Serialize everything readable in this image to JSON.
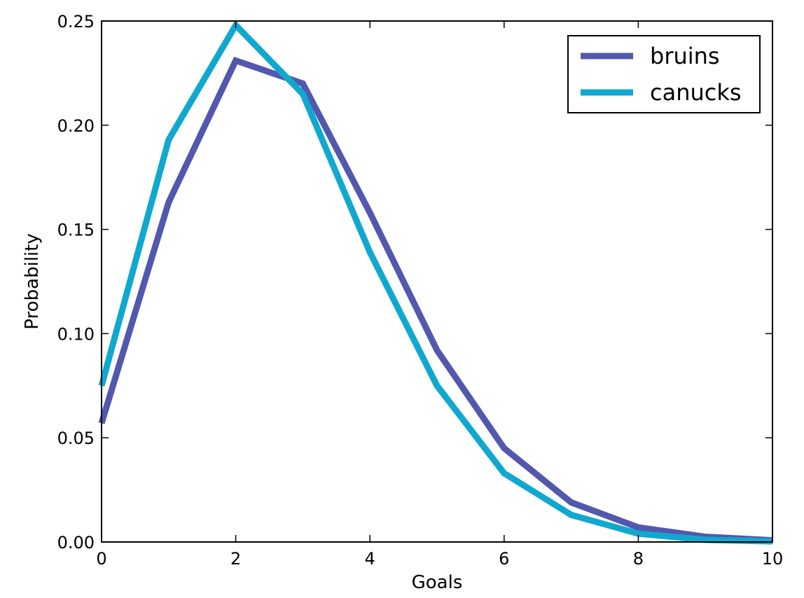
{
  "chart_data": {
    "type": "line",
    "title": "",
    "xlabel": "Goals",
    "ylabel": "Probability",
    "xlim": [
      0,
      10
    ],
    "ylim": [
      0,
      0.25
    ],
    "x": [
      0,
      1,
      2,
      3,
      4,
      5,
      6,
      7,
      8,
      9,
      10
    ],
    "x_ticks": [
      "0",
      "2",
      "4",
      "6",
      "8",
      "10"
    ],
    "y_ticks": [
      "0.00",
      "0.05",
      "0.10",
      "0.15",
      "0.20",
      "0.25"
    ],
    "grid": false,
    "legend_position": "top-right",
    "series": [
      {
        "name": "bruins",
        "color": "#5158ad",
        "values": [
          0.057,
          0.163,
          0.231,
          0.22,
          0.158,
          0.092,
          0.045,
          0.019,
          0.007,
          0.0025,
          0.0008
        ]
      },
      {
        "name": "canucks",
        "color": "#10a8cf",
        "values": [
          0.075,
          0.193,
          0.248,
          0.215,
          0.139,
          0.075,
          0.033,
          0.013,
          0.004,
          0.001,
          0.0003
        ]
      }
    ]
  }
}
